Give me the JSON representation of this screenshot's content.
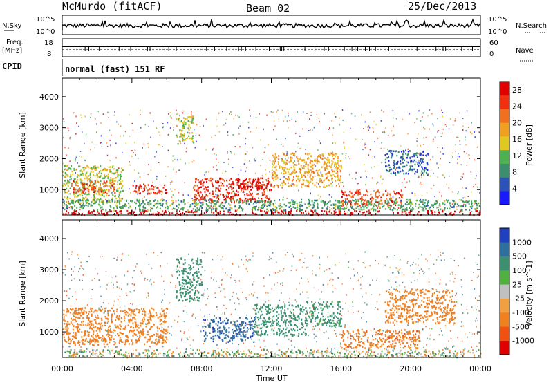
{
  "header": {
    "station": "McMurdo (fitACF)",
    "beam": "Beam 02",
    "date": "25/Dec/2013"
  },
  "strip_labels": {
    "nsky": "N.Sky",
    "nsky_tick_hi": "10^5",
    "nsky_tick_lo": "10^0",
    "nsearch": "N.Search",
    "nsearch_tick_hi": "10^5",
    "nsearch_tick_lo": "10^0",
    "freq": "Freq.",
    "freq_unit": "[MHz]",
    "freq_tick_hi": "18",
    "freq_tick_lo": "8",
    "nave": "Nave",
    "nave_tick_hi": "60",
    "nave_tick_lo": "0",
    "cpid": "CPID",
    "cpid_value": "normal (fast) 151 RF"
  },
  "colors": {
    "power_scale": [
      "#1a1aff",
      "#2a52b8",
      "#3c8f6e",
      "#4fb050",
      "#e0c820",
      "#f0a020",
      "#f07020",
      "#f03010",
      "#e00000"
    ],
    "velocity_scale": [
      "#2040c0",
      "#2f6fa0",
      "#3a9070",
      "#50b040",
      "#c0c0c0",
      "#f0a040",
      "#f08020",
      "#f05010",
      "#e00000"
    ]
  },
  "chart_data": [
    {
      "type": "heatmap",
      "panel": "power",
      "ylabel": "Slant Range [km]",
      "xlabel": "Time UT",
      "xlim": [
        "00:00",
        "24:00"
      ],
      "ylim": [
        180,
        4600
      ],
      "x_ticks": [
        "00:00",
        "04:00",
        "08:00",
        "12:00",
        "16:00",
        "20:00",
        "00:00"
      ],
      "y_ticks": [
        1000,
        2000,
        3000,
        4000
      ],
      "colorbar": {
        "label": "Power [dB]",
        "ticks": [
          4,
          8,
          12,
          16,
          20,
          24,
          28
        ],
        "range": [
          0,
          30
        ]
      },
      "regions": [
        {
          "t": [
            0.0,
            24.0
          ],
          "r": [
            200,
            350
          ],
          "value": 30
        },
        {
          "t": [
            0.0,
            3.5
          ],
          "r": [
            600,
            1800
          ],
          "value": 14
        },
        {
          "t": [
            0.5,
            3.0
          ],
          "r": [
            900,
            1300
          ],
          "value": 24
        },
        {
          "t": [
            4.0,
            6.0
          ],
          "r": [
            900,
            1200
          ],
          "value": 26
        },
        {
          "t": [
            6.5,
            7.5
          ],
          "r": [
            2500,
            3400
          ],
          "value": 14
        },
        {
          "t": [
            7.5,
            12.0
          ],
          "r": [
            600,
            1400
          ],
          "value": 26
        },
        {
          "t": [
            10.0,
            11.5
          ],
          "r": [
            1000,
            1400
          ],
          "value": 30
        },
        {
          "t": [
            12.0,
            16.0
          ],
          "r": [
            1100,
            2200
          ],
          "value": 18
        },
        {
          "t": [
            16.0,
            19.5
          ],
          "r": [
            500,
            1000
          ],
          "value": 24
        },
        {
          "t": [
            0.0,
            24.0
          ],
          "r": [
            350,
            700
          ],
          "value": 10
        },
        {
          "t": [
            18.5,
            21.0
          ],
          "r": [
            1500,
            2300
          ],
          "value": 6
        }
      ]
    },
    {
      "type": "heatmap",
      "panel": "velocity",
      "ylabel": "Slant Range [km]",
      "xlabel": "Time UT",
      "xlim": [
        "00:00",
        "24:00"
      ],
      "ylim": [
        180,
        4600
      ],
      "x_ticks": [
        "00:00",
        "04:00",
        "08:00",
        "12:00",
        "16:00",
        "20:00",
        "00:00"
      ],
      "y_ticks": [
        1000,
        2000,
        3000,
        4000
      ],
      "colorbar": {
        "label": "Velocity [m s^-1]",
        "ticks": [
          1000,
          500,
          100,
          25,
          -25,
          -100,
          -500,
          -1000
        ]
      },
      "regions": [
        {
          "t": [
            0.0,
            24.0
          ],
          "r": [
            200,
            450
          ],
          "value": 25
        },
        {
          "t": [
            0.0,
            6.0
          ],
          "r": [
            600,
            1800
          ],
          "value": -300
        },
        {
          "t": [
            6.5,
            8.0
          ],
          "r": [
            2000,
            3400
          ],
          "value": 300
        },
        {
          "t": [
            8.0,
            11.0
          ],
          "r": [
            700,
            1500
          ],
          "value": 900
        },
        {
          "t": [
            11.0,
            14.0
          ],
          "r": [
            900,
            1900
          ],
          "value": 300
        },
        {
          "t": [
            14.0,
            16.0
          ],
          "r": [
            1200,
            2000
          ],
          "value": 200
        },
        {
          "t": [
            16.0,
            20.5
          ],
          "r": [
            500,
            1100
          ],
          "value": -400
        },
        {
          "t": [
            18.5,
            22.5
          ],
          "r": [
            1300,
            2400
          ],
          "value": -300
        }
      ]
    }
  ]
}
